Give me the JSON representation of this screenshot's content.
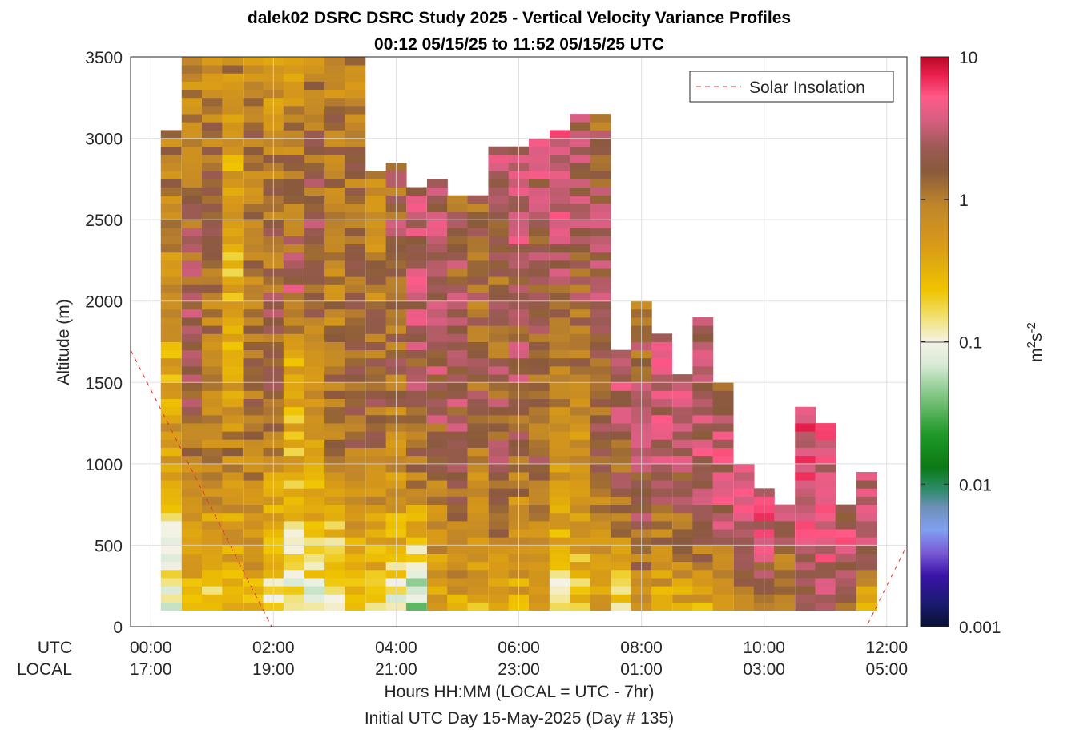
{
  "chart_data": {
    "type": "heatmap",
    "title": "dalek02 DSRC DSRC Study 2025 - Vertical Velocity Variance Profiles",
    "subtitle": "00:12 05/15/25 to 11:52 05/15/25  UTC",
    "ylabel": "Altitude (m)",
    "xlabel": "Hours HH:MM  (LOCAL = UTC - 7hr)",
    "xlabel2": "Initial UTC Day 15-May-2025 (Day # 135)",
    "ylim": [
      0,
      3500
    ],
    "xlim_hours": [
      -0.33,
      12.33
    ],
    "yticks": [
      "0",
      "500",
      "1000",
      "1500",
      "2000",
      "2500",
      "3000",
      "3500"
    ],
    "ytick_values": [
      0,
      500,
      1000,
      1500,
      2000,
      2500,
      3000,
      3500
    ],
    "xtick_values": [
      0,
      2,
      4,
      6,
      8,
      10,
      12
    ],
    "xticks_utc": [
      "00:00",
      "02:00",
      "04:00",
      "06:00",
      "08:00",
      "10:00",
      "12:00"
    ],
    "xticks_local": [
      "17:00",
      "19:00",
      "21:00",
      "23:00",
      "01:00",
      "03:00",
      "05:00"
    ],
    "row_label_utc": "UTC",
    "row_label_local": "LOCAL",
    "legend": {
      "label": "Solar Insolation",
      "placement": "top-right"
    },
    "colorbar": {
      "unit": "m2s-2",
      "scale": "log",
      "range": [
        0.001,
        10
      ],
      "ticks": [
        "0.001",
        "0.01",
        "0.1",
        "1",
        "10"
      ],
      "tick_values": [
        0.001,
        0.01,
        0.1,
        1,
        10
      ]
    },
    "grid": true,
    "solar_insolation_x_hours": [
      -0.33,
      1.97,
      11.67,
      12.33
    ],
    "solar_insolation_y": [
      1700,
      0,
      0,
      500
    ],
    "time_bins_utc_hours": [
      0.33,
      0.67,
      1.0,
      1.33,
      1.67,
      2.0,
      2.33,
      2.67,
      3.0,
      3.33,
      3.67,
      4.0,
      4.33,
      4.67,
      5.0,
      5.33,
      5.67,
      6.0,
      6.33,
      6.67,
      7.0,
      7.33,
      7.67,
      8.0,
      8.33,
      8.67,
      9.0,
      9.33,
      9.67,
      10.0,
      10.33,
      10.67,
      11.0,
      11.33,
      11.67
    ],
    "profiles": [
      {
        "h": [
          0,
          3050
        ],
        "v": [
          0.12,
          0.15,
          0.6,
          0.4,
          0.7,
          1.0,
          0.9
        ]
      },
      {
        "h": [
          0,
          3500
        ],
        "v": [
          0.3,
          0.5,
          1.2,
          3.0,
          2.0,
          1.5,
          1.0,
          0.8
        ]
      },
      {
        "h": [
          0,
          3500
        ],
        "v": [
          0.2,
          0.6,
          0.8,
          0.9,
          1.2,
          1.5,
          1.0,
          0.7
        ]
      },
      {
        "h": [
          0,
          3500
        ],
        "v": [
          0.3,
          0.5,
          0.9,
          0.4,
          0.3,
          0.4,
          0.5,
          0.9
        ]
      },
      {
        "h": [
          0,
          3500
        ],
        "v": [
          0.4,
          0.6,
          1.0,
          1.4,
          1.1,
          0.9,
          1.2,
          0.7
        ]
      },
      {
        "h": [
          0,
          3500
        ],
        "v": [
          0.15,
          0.3,
          0.8,
          2.0,
          1.5,
          1.2,
          0.9,
          0.5
        ]
      },
      {
        "h": [
          0,
          3500
        ],
        "v": [
          0.12,
          0.2,
          0.35,
          0.4,
          2.5,
          1.2,
          1.0,
          0.6
        ]
      },
      {
        "h": [
          0,
          3500
        ],
        "v": [
          0.1,
          0.3,
          0.5,
          0.9,
          1.5,
          1.8,
          1.3,
          0.8
        ]
      },
      {
        "h": [
          0,
          3500
        ],
        "v": [
          0.1,
          0.3,
          0.9,
          1.2,
          0.9,
          1.0,
          1.1,
          0.7
        ]
      },
      {
        "h": [
          0,
          3500
        ],
        "v": [
          0.2,
          0.6,
          1.2,
          2.0,
          1.4,
          1.3,
          1.0,
          0.8
        ]
      },
      {
        "h": [
          0,
          2800
        ],
        "v": [
          0.25,
          0.5,
          1.0,
          1.5,
          1.1,
          0.9,
          0.8
        ]
      },
      {
        "h": [
          0,
          2850
        ],
        "v": [
          0.08,
          0.4,
          0.8,
          1.3,
          1.6,
          2.2,
          1.4
        ]
      },
      {
        "h": [
          0,
          2700
        ],
        "v": [
          0.04,
          0.3,
          1.1,
          1.8,
          2.5,
          3.0,
          2.8
        ]
      },
      {
        "h": [
          0,
          2750
        ],
        "v": [
          0.4,
          0.7,
          1.4,
          2.4,
          2.8,
          3.0,
          2.5
        ]
      },
      {
        "h": [
          0,
          2650
        ],
        "v": [
          0.5,
          0.9,
          2.0,
          2.2,
          1.8,
          2.0,
          1.7
        ]
      },
      {
        "h": [
          0,
          2650
        ],
        "v": [
          0.4,
          0.7,
          1.0,
          1.8,
          1.5,
          1.6,
          1.4
        ]
      },
      {
        "h": [
          0,
          2950
        ],
        "v": [
          0.35,
          1.1,
          2.0,
          1.8,
          1.4,
          2.5,
          3.0
        ]
      },
      {
        "h": [
          0,
          2950
        ],
        "v": [
          0.45,
          0.6,
          1.5,
          2.6,
          1.8,
          3.2,
          3.0
        ]
      },
      {
        "h": [
          0,
          3000
        ],
        "v": [
          0.5,
          0.9,
          1.6,
          1.3,
          1.7,
          2.5,
          3.0
        ]
      },
      {
        "h": [
          0,
          3050
        ],
        "v": [
          0.1,
          0.4,
          0.7,
          1.4,
          2.0,
          3.2,
          3.5
        ]
      },
      {
        "h": [
          0,
          3150
        ],
        "v": [
          0.2,
          0.5,
          0.7,
          1.2,
          1.8,
          2.6,
          2.0
        ]
      },
      {
        "h": [
          0,
          3150
        ],
        "v": [
          0.45,
          0.8,
          1.4,
          1.9,
          2.4,
          2.0,
          1.5
        ]
      },
      {
        "h": [
          0,
          1700
        ],
        "v": [
          0.15,
          0.9,
          1.5,
          2.5,
          4.0
        ]
      },
      {
        "h": [
          0,
          2000
        ],
        "v": [
          0.5,
          2.0,
          2.5,
          1.8,
          1.4
        ]
      },
      {
        "h": [
          0,
          1800
        ],
        "v": [
          0.4,
          1.0,
          2.5,
          3.0,
          2.8
        ]
      },
      {
        "h": [
          0,
          1550
        ],
        "v": [
          0.4,
          1.5,
          2.5,
          4.5
        ]
      },
      {
        "h": [
          0,
          1900
        ],
        "v": [
          0.4,
          1.8,
          3.0,
          2.5,
          2.0
        ]
      },
      {
        "h": [
          0,
          1500
        ],
        "v": [
          0.35,
          2.5,
          3.5,
          2.0
        ]
      },
      {
        "h": [
          0,
          1000
        ],
        "v": [
          0.9,
          3.0,
          3.2
        ]
      },
      {
        "h": [
          0,
          850
        ],
        "v": [
          1.3,
          3.0,
          5.0
        ]
      },
      {
        "h": [
          0,
          750
        ],
        "v": [
          1.0,
          1.5,
          2.5
        ]
      },
      {
        "h": [
          0,
          1350
        ],
        "v": [
          1.3,
          3.0,
          4.0,
          5.0
        ]
      },
      {
        "h": [
          0,
          1250
        ],
        "v": [
          2.5,
          3.5,
          4.5,
          3.5
        ]
      },
      {
        "h": [
          0,
          750
        ],
        "v": [
          1.0,
          3.5,
          2.5
        ]
      },
      {
        "h": [
          0,
          950
        ],
        "v": [
          0.3,
          3.0,
          3.0
        ]
      }
    ]
  }
}
